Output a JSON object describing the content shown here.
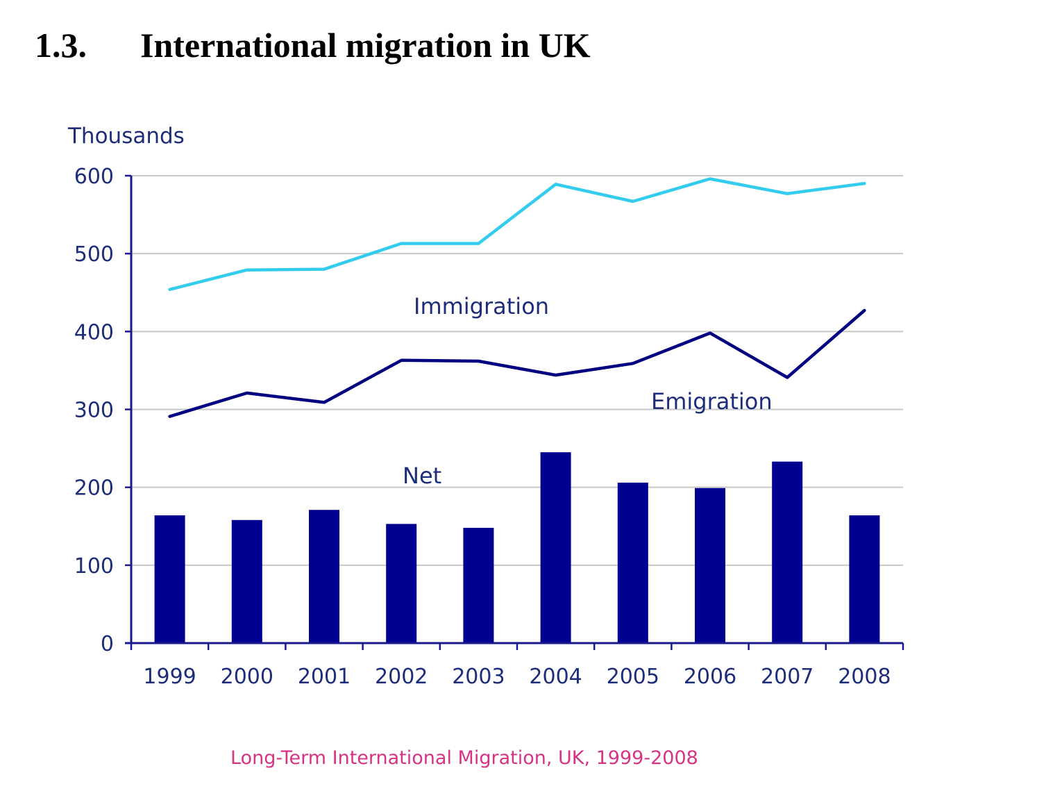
{
  "heading": {
    "number": "1.3.",
    "title": "International migration in UK"
  },
  "chart_data": {
    "type": "bar+line",
    "ylabel": "Thousands",
    "caption": "Long-Term International Migration, UK, 1999-2008",
    "categories": [
      "1999",
      "2000",
      "2001",
      "2002",
      "2003",
      "2004",
      "2005",
      "2006",
      "2007",
      "2008"
    ],
    "ylim": [
      0,
      600
    ],
    "yticks": [
      "0",
      "100",
      "200",
      "300",
      "400",
      "500",
      "600"
    ],
    "grid": true,
    "series": [
      {
        "name": "Immigration",
        "type": "line",
        "color": "#33ccee",
        "values": [
          454,
          479,
          480,
          513,
          513,
          589,
          567,
          596,
          577,
          590
        ]
      },
      {
        "name": "Emigration",
        "type": "line",
        "color": "#000080",
        "values": [
          291,
          321,
          309,
          363,
          362,
          344,
          359,
          398,
          341,
          427
        ]
      },
      {
        "name": "Net",
        "type": "bar",
        "color": "#000090",
        "values": [
          164,
          158,
          171,
          153,
          148,
          245,
          206,
          199,
          233,
          164
        ]
      }
    ],
    "colors": {
      "axis": "#1a1a8c",
      "text": "#1e2d7a",
      "grid": "#c8c8c8",
      "caption": "#d63384"
    }
  }
}
